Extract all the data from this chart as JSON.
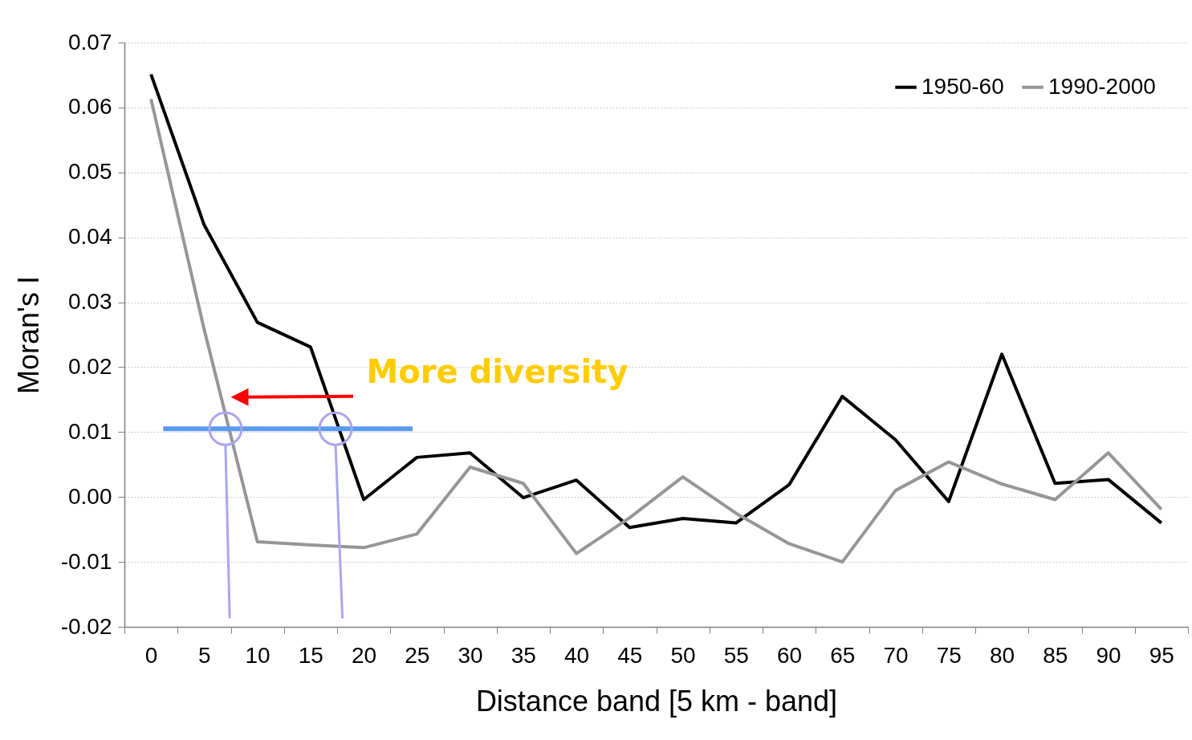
{
  "chart_data": {
    "type": "line",
    "xlabel": "Distance band [5 km - band]",
    "ylabel": "Moran's I",
    "categories": [
      "0",
      "5",
      "10",
      "15",
      "20",
      "25",
      "30",
      "35",
      "40",
      "45",
      "50",
      "55",
      "60",
      "65",
      "70",
      "75",
      "80",
      "85",
      "90",
      "95"
    ],
    "series": [
      {
        "name": "1950-60",
        "color": "#000000",
        "values": [
          0.0651,
          0.0419,
          0.0269,
          0.0231,
          -0.0004,
          0.0061,
          0.0068,
          -0.0001,
          0.0026,
          -0.0047,
          -0.0033,
          -0.004,
          0.0019,
          0.0155,
          0.0088,
          -0.0007,
          0.022,
          0.0021,
          0.0027,
          -0.004
        ]
      },
      {
        "name": "1990-2000",
        "color": "#969696",
        "values": [
          0.0613,
          0.0258,
          -0.0069,
          -0.0074,
          -0.0078,
          -0.0057,
          0.0046,
          0.0021,
          -0.0087,
          -0.0032,
          0.0031,
          -0.0025,
          -0.0072,
          -0.01,
          0.001,
          0.0054,
          0.002,
          -0.0004,
          0.0068,
          -0.0019
        ]
      }
    ],
    "ylim": [
      -0.02,
      0.07
    ],
    "yticks": [
      -0.02,
      -0.01,
      {
        "value": 0,
        "label": "0.00"
      },
      0.01,
      0.02,
      0.03,
      0.04,
      0.05,
      0.06,
      0.07
    ],
    "grid": "y",
    "legend": "top right",
    "marker": "none",
    "line_style": "solid",
    "annotations": [
      "More diversity"
    ]
  }
}
